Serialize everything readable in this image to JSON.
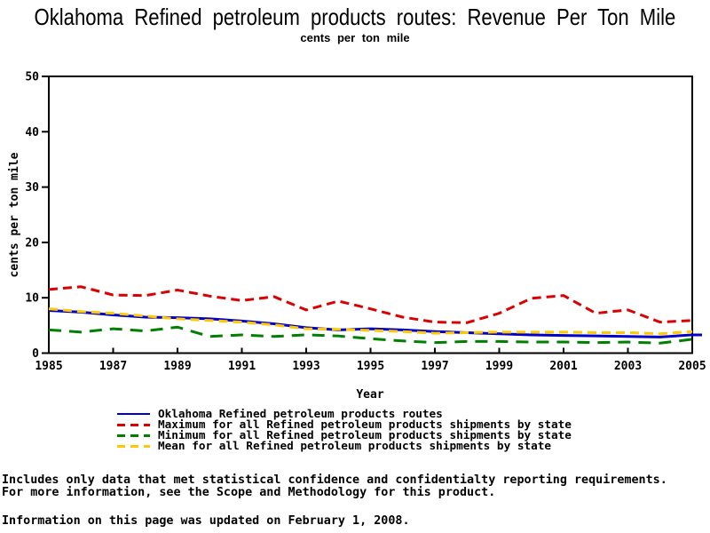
{
  "title": "Oklahoma Refined petroleum products routes: Revenue Per Ton Mile",
  "subtitle": "cents per ton mile",
  "chart_data": {
    "type": "line",
    "title": "Oklahoma Refined petroleum products routes: Revenue Per Ton Mile",
    "subtitle": "cents per ton mile",
    "xlabel": "Year",
    "ylabel": "cents per ton mile",
    "xlim": [
      1985,
      2005
    ],
    "ylim": [
      0,
      50
    ],
    "xticks": [
      1985,
      1987,
      1989,
      1991,
      1993,
      1995,
      1997,
      1999,
      2001,
      2003,
      2005
    ],
    "yticks": [
      0,
      10,
      20,
      30,
      40,
      50
    ],
    "grid": false,
    "legend_position": "bottom",
    "x": [
      1985,
      1986,
      1987,
      1988,
      1989,
      1990,
      1991,
      1992,
      1993,
      1994,
      1995,
      1996,
      1997,
      1998,
      1999,
      2000,
      2001,
      2002,
      2003,
      2004,
      2005
    ],
    "series": [
      {
        "name": "Oklahoma Refined petroleum products routes",
        "color": "#0000cc",
        "style": "solid",
        "values": [
          7.7,
          7.4,
          6.9,
          6.5,
          6.4,
          6.2,
          5.8,
          5.3,
          4.6,
          4.2,
          4.4,
          4.2,
          3.9,
          3.7,
          3.5,
          3.3,
          3.2,
          3.1,
          3.0,
          2.9,
          3.3
        ]
      },
      {
        "name": "Maximum for all Refined petroleum products shipments by state",
        "color": "#dd0000",
        "style": "dashed",
        "values": [
          11.5,
          12.0,
          10.5,
          10.4,
          11.4,
          10.3,
          9.5,
          10.2,
          7.8,
          9.4,
          8.0,
          6.5,
          5.6,
          5.5,
          7.2,
          9.9,
          10.4,
          7.2,
          7.8,
          5.6,
          5.9
        ]
      },
      {
        "name": "Minimum for all Refined petroleum products shipments by state",
        "color": "#008000",
        "style": "dashed",
        "values": [
          4.2,
          3.8,
          4.4,
          4.0,
          4.7,
          3.0,
          3.3,
          3.0,
          3.3,
          3.1,
          2.6,
          2.2,
          1.9,
          2.1,
          2.1,
          2.0,
          2.0,
          1.9,
          2.0,
          1.8,
          2.5
        ]
      },
      {
        "name": "Mean for all Refined petroleum products shipments by state",
        "color": "#ffc800",
        "style": "dashed",
        "values": [
          8.0,
          7.5,
          7.2,
          6.7,
          6.2,
          5.9,
          5.6,
          5.1,
          4.4,
          4.3,
          4.1,
          3.9,
          3.6,
          3.7,
          3.8,
          3.8,
          3.8,
          3.7,
          3.7,
          3.5,
          3.9
        ]
      }
    ]
  },
  "footer": {
    "line1": "Includes only data that met statistical confidence and confidentialty reporting requirements.",
    "line2": "For more information, see the Scope and Methodology for this product.",
    "line3": "Information on this page was updated on February 1, 2008."
  }
}
